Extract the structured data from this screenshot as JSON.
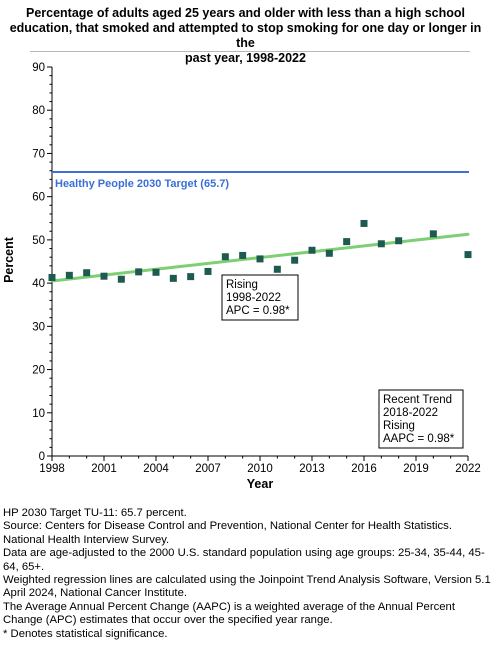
{
  "title_lines": [
    "Percentage of adults aged 25 years and older with less than a high school",
    "education, that smoked and attempted to stop smoking for one day or longer in the",
    "past year, 1998-2022"
  ],
  "chart_data": {
    "type": "scatter",
    "title": "Percentage of adults aged 25 years and older with less than a high school education, that smoked and attempted to stop smoking for one day or longer in the past year, 1998-2022",
    "xlabel": "Year",
    "ylabel": "Percent",
    "xlim": [
      1998,
      2022
    ],
    "ylim": [
      0,
      90
    ],
    "x_ticks": [
      1998,
      2001,
      2004,
      2007,
      2010,
      2013,
      2016,
      2019,
      2022
    ],
    "y_ticks": [
      0,
      10,
      20,
      30,
      40,
      50,
      60,
      70,
      80,
      90
    ],
    "grid": false,
    "colors": {
      "points": "#1e5a50",
      "trend": "#7ccf72",
      "target": "#3a6fd8"
    },
    "points": [
      {
        "x": 1998,
        "y": 41.3
      },
      {
        "x": 1999,
        "y": 41.8
      },
      {
        "x": 2000,
        "y": 42.4
      },
      {
        "x": 2001,
        "y": 41.6
      },
      {
        "x": 2002,
        "y": 40.9
      },
      {
        "x": 2003,
        "y": 42.6
      },
      {
        "x": 2004,
        "y": 42.5
      },
      {
        "x": 2005,
        "y": 41.1
      },
      {
        "x": 2006,
        "y": 41.5
      },
      {
        "x": 2007,
        "y": 42.7
      },
      {
        "x": 2008,
        "y": 46.1
      },
      {
        "x": 2009,
        "y": 46.4
      },
      {
        "x": 2010,
        "y": 45.6
      },
      {
        "x": 2011,
        "y": 43.2
      },
      {
        "x": 2012,
        "y": 45.3
      },
      {
        "x": 2013,
        "y": 47.6
      },
      {
        "x": 2014,
        "y": 46.9
      },
      {
        "x": 2015,
        "y": 49.6
      },
      {
        "x": 2016,
        "y": 53.8
      },
      {
        "x": 2017,
        "y": 49.1
      },
      {
        "x": 2018,
        "y": 49.8
      },
      {
        "x": 2020,
        "y": 51.4
      },
      {
        "x": 2022,
        "y": 46.6
      }
    ],
    "trend_line": {
      "x": [
        1998,
        2022
      ],
      "y": [
        40.5,
        51.3
      ]
    },
    "target": {
      "value": 65.7,
      "label": "Healthy People 2030 Target (65.7)"
    },
    "annotations": [
      {
        "lines": [
          "Rising",
          "1998-2022",
          "APC =  0.98*"
        ]
      },
      {
        "lines": [
          "Recent Trend",
          "2018-2022",
          "Rising",
          "AAPC =  0.98*"
        ]
      }
    ]
  },
  "footnotes": [
    "HP 2030 Target TU-11: 65.7 percent.",
    "Source: Centers for Disease Control and Prevention, National Center for Health Statistics. National Health Interview Survey.",
    "Data are age-adjusted to the 2000 U.S. standard population using age groups: 25-34, 35-44, 45-64, 65+.",
    "Weighted regression lines are calculated using the Joinpoint Trend Analysis Software, Version 5.1 April 2024, National Cancer Institute.",
    "The Average Annual Percent Change (AAPC) is a weighted average of the Annual Percent Change (APC) estimates that occur over the specified year range.",
    "* Denotes statistical significance."
  ]
}
